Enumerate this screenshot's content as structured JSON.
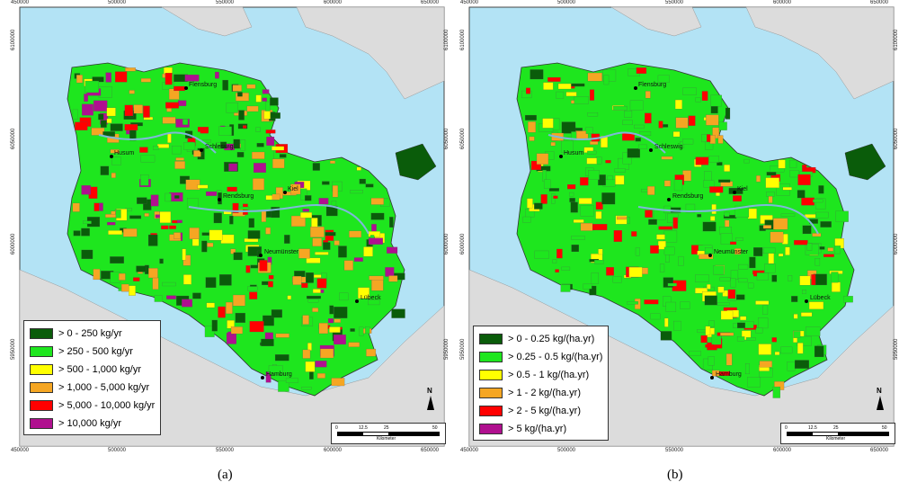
{
  "panels": [
    {
      "caption": "(a)",
      "x_ticks": [
        "450000",
        "500000",
        "550000",
        "600000",
        "650000"
      ],
      "y_ticks": [
        "6100000",
        "6050000",
        "6000000",
        "5950000"
      ],
      "cities": [
        "Flensburg",
        "Schleswig",
        "Husum",
        "Rendsburg",
        "Kiel",
        "Neumünster",
        "Lübeck",
        "Hamburg"
      ],
      "legend": [
        {
          "label": "> 0 - 250 kg/yr",
          "color": "#0a5c0a"
        },
        {
          "label": "> 250 - 500 kg/yr",
          "color": "#1ee61e"
        },
        {
          "label": "> 500 - 1,000 kg/yr",
          "color": "#ffff00"
        },
        {
          "label": "> 1,000 - 5,000 kg/yr",
          "color": "#f5a623"
        },
        {
          "label": "> 5,000 - 10,000  kg/yr",
          "color": "#ff0000"
        },
        {
          "label": "> 10,000 kg/yr",
          "color": "#b0108f"
        }
      ],
      "scale": {
        "ticks": [
          "0",
          "12.5",
          "25",
          "50"
        ],
        "unit": "Kilometer"
      },
      "north": "N"
    },
    {
      "caption": "(b)",
      "x_ticks": [
        "450000",
        "500000",
        "550000",
        "600000",
        "650000"
      ],
      "y_ticks": [
        "6100000",
        "6050000",
        "6000000",
        "5950000"
      ],
      "cities": [
        "Flensburg",
        "Schleswig",
        "Husum",
        "Rendsburg",
        "Kiel",
        "Neumünster",
        "Lübeck",
        "Hamburg"
      ],
      "legend": [
        {
          "label": "> 0 - 0.25 kg/(ha.yr)",
          "color": "#0a5c0a"
        },
        {
          "label": "> 0.25 - 0.5 kg/(ha.yr)",
          "color": "#1ee61e"
        },
        {
          "label": "> 0.5 - 1 kg/(ha.yr)",
          "color": "#ffff00"
        },
        {
          "label": "> 1 - 2 kg/(ha.yr)",
          "color": "#f5a623"
        },
        {
          "label": "> 2 - 5 kg/(ha.yr)",
          "color": "#ff0000"
        },
        {
          "label": "> 5 kg/(ha.yr)",
          "color": "#b0108f"
        }
      ],
      "scale": {
        "ticks": [
          "0",
          "12.5",
          "25",
          "50"
        ],
        "unit": "Kilometer"
      },
      "north": "N"
    }
  ],
  "colors": {
    "sea": "#b3e3f5",
    "land_outside": "#dcdcdc",
    "border": "#444444"
  }
}
